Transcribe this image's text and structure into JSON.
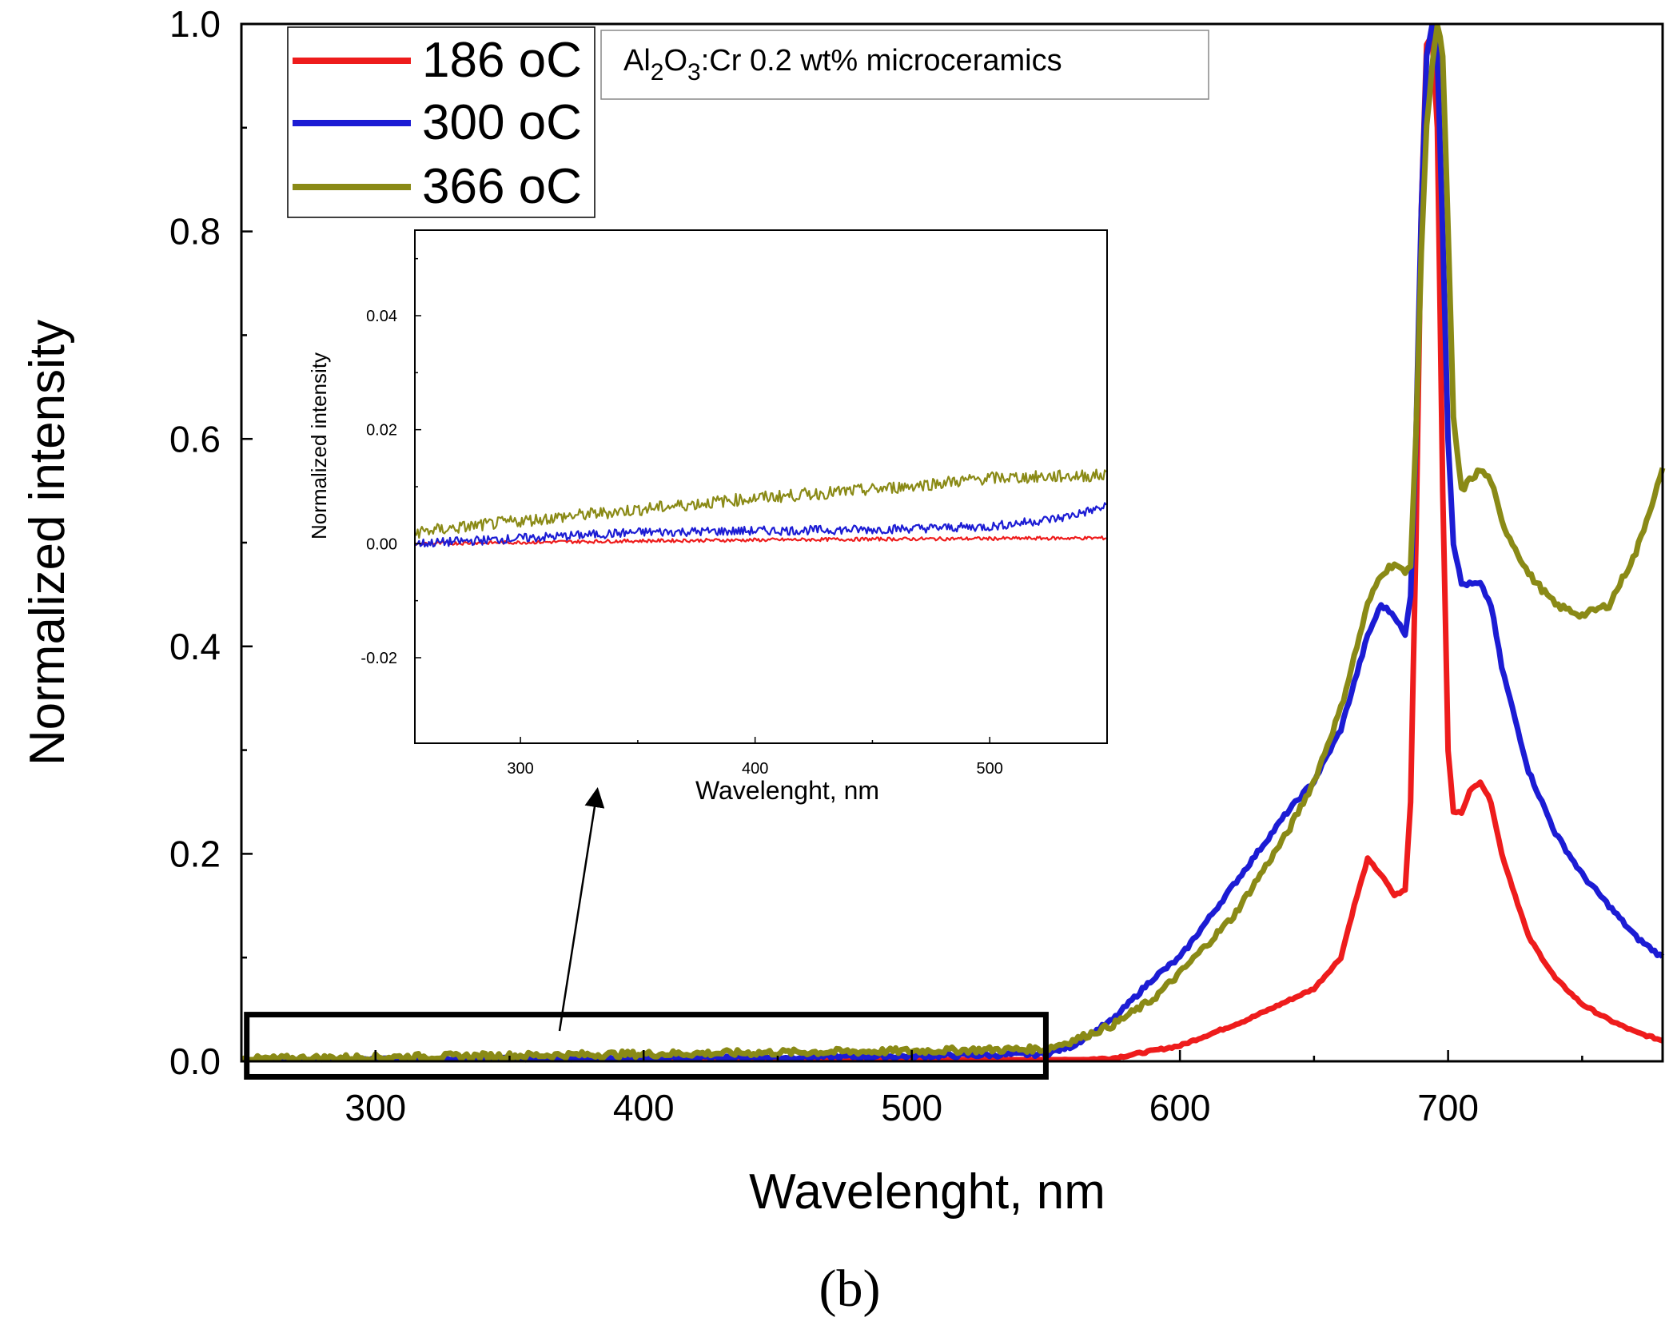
{
  "chart_data": [
    {
      "id": "main",
      "type": "line",
      "title": "",
      "xlabel": "Wavelenght, nm",
      "ylabel": "Normalized intensity",
      "xlim": [
        250,
        780
      ],
      "ylim": [
        0.0,
        1.0
      ],
      "xticks": [
        300,
        400,
        500,
        600,
        700
      ],
      "xtick_labels": [
        "300",
        "400",
        "500",
        "600",
        "700"
      ],
      "yticks": [
        0.0,
        0.2,
        0.4,
        0.6,
        0.8,
        1.0
      ],
      "ytick_labels": [
        "0.0",
        "0.2",
        "0.4",
        "0.6",
        "0.8",
        "1.0"
      ],
      "legend": {
        "location": "top-left",
        "entries": [
          "186 oC",
          "300 oC",
          "366 oC"
        ]
      },
      "annotation": {
        "text_parts": [
          "Al",
          "2",
          "O",
          "3",
          ":Cr 0.2 wt% microceramics"
        ],
        "location": "top-center"
      },
      "highlight_box": {
        "x_range": [
          252,
          550
        ],
        "y_range": [
          -0.015,
          0.045
        ],
        "arrow_to": "inset"
      },
      "series": [
        {
          "name": "186 oC",
          "color": "#ee1c1c",
          "x": [
            250,
            300,
            400,
            500,
            550,
            575,
            600,
            625,
            650,
            660,
            665,
            670,
            675,
            680,
            684,
            686,
            688,
            690,
            692,
            694,
            696,
            698,
            700,
            702,
            705,
            708,
            712,
            716,
            720,
            730,
            740,
            750,
            760,
            770,
            780
          ],
          "y": [
            0.0,
            0.0,
            0.0,
            0.0,
            0.0,
            0.003,
            0.015,
            0.04,
            0.07,
            0.1,
            0.15,
            0.195,
            0.18,
            0.16,
            0.165,
            0.25,
            0.5,
            0.82,
            0.98,
            0.99,
            0.9,
            0.55,
            0.3,
            0.24,
            0.24,
            0.26,
            0.27,
            0.25,
            0.2,
            0.12,
            0.08,
            0.055,
            0.04,
            0.028,
            0.02
          ]
        },
        {
          "name": "300 oC",
          "color": "#1c1cd4",
          "x": [
            250,
            300,
            400,
            500,
            550,
            560,
            575,
            590,
            600,
            620,
            640,
            650,
            660,
            670,
            675,
            680,
            684,
            686,
            688,
            690,
            692,
            694,
            696,
            698,
            700,
            702,
            705,
            708,
            712,
            716,
            720,
            730,
            740,
            750,
            760,
            770,
            780
          ],
          "y": [
            0.0,
            0.001,
            0.003,
            0.005,
            0.007,
            0.015,
            0.04,
            0.08,
            0.1,
            0.17,
            0.24,
            0.27,
            0.32,
            0.41,
            0.44,
            0.43,
            0.41,
            0.45,
            0.6,
            0.82,
            0.97,
            1.0,
            0.97,
            0.8,
            0.6,
            0.5,
            0.46,
            0.46,
            0.46,
            0.44,
            0.38,
            0.28,
            0.22,
            0.18,
            0.15,
            0.12,
            0.1
          ]
        },
        {
          "name": "366 oC",
          "color": "#8a8a16",
          "x": [
            250,
            300,
            400,
            500,
            550,
            560,
            575,
            590,
            600,
            620,
            640,
            650,
            660,
            670,
            675,
            680,
            684,
            686,
            688,
            690,
            692,
            694,
            696,
            698,
            700,
            702,
            705,
            708,
            712,
            716,
            720,
            730,
            740,
            750,
            760,
            770,
            780
          ],
          "y": [
            0.002,
            0.004,
            0.007,
            0.01,
            0.012,
            0.02,
            0.035,
            0.06,
            0.085,
            0.14,
            0.22,
            0.27,
            0.34,
            0.44,
            0.47,
            0.48,
            0.47,
            0.48,
            0.6,
            0.78,
            0.9,
            0.96,
            1.0,
            0.97,
            0.8,
            0.62,
            0.55,
            0.56,
            0.57,
            0.56,
            0.52,
            0.47,
            0.44,
            0.43,
            0.44,
            0.49,
            0.57
          ]
        }
      ]
    },
    {
      "id": "inset",
      "type": "line",
      "title": "",
      "xlabel": "Wavelenght, nm",
      "ylabel": "Normalized intensity",
      "xlim": [
        255,
        550
      ],
      "ylim": [
        -0.035,
        0.055
      ],
      "xticks": [
        300,
        400,
        500
      ],
      "xtick_labels": [
        "300",
        "400",
        "500"
      ],
      "yticks": [
        -0.02,
        0.0,
        0.02,
        0.04
      ],
      "ytick_labels": [
        "-0.02",
        "0.00",
        "0.02",
        "0.04"
      ],
      "series": [
        {
          "name": "186 oC",
          "color": "#ee1c1c",
          "x": [
            255,
            350,
            450,
            550
          ],
          "y": [
            0.0,
            0.0005,
            0.0008,
            0.001
          ]
        },
        {
          "name": "300 oC",
          "color": "#1c1cd4",
          "x": [
            255,
            350,
            450,
            500,
            530,
            550
          ],
          "y": [
            0.0,
            0.002,
            0.0025,
            0.003,
            0.0045,
            0.0065
          ]
        },
        {
          "name": "366 oC",
          "color": "#8a8a16",
          "x": [
            255,
            300,
            350,
            400,
            450,
            500,
            550
          ],
          "y": [
            0.002,
            0.004,
            0.006,
            0.008,
            0.0095,
            0.0115,
            0.012
          ]
        }
      ]
    }
  ],
  "panel_label": "(b)"
}
